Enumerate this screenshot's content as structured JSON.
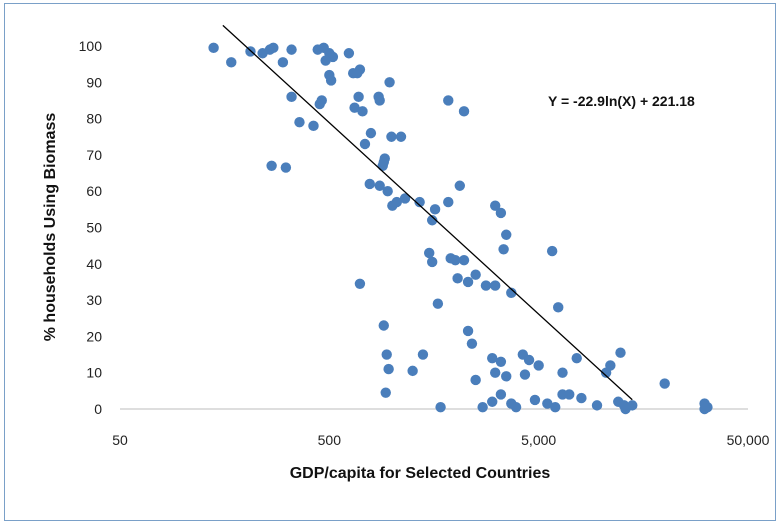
{
  "chart_data": {
    "type": "scatter",
    "title": "",
    "xlabel": "GDP/capita for Selected Countries",
    "ylabel": "% households Using Biomass",
    "x_scale": "log",
    "xlim": [
      50,
      50000
    ],
    "ylim": [
      0,
      100
    ],
    "x_ticks": [
      50,
      500,
      5000,
      50000
    ],
    "x_tick_labels": [
      "50",
      "500",
      "5,000",
      "50,000"
    ],
    "y_ticks": [
      0,
      10,
      20,
      30,
      40,
      50,
      60,
      70,
      80,
      90,
      100
    ],
    "y_tick_labels": [
      "0",
      "10",
      "20",
      "30",
      "40",
      "50",
      "60",
      "70",
      "80",
      "90",
      "100"
    ],
    "grid": "none",
    "legend": "none",
    "point_color": "#4a7ebb",
    "trendline": {
      "label": "Y = -22.9ln(X) + 221.18",
      "slope": -22.9,
      "intercept": 221.18,
      "x_range": [
        155,
        14000
      ],
      "color": "#000000"
    },
    "points": [
      [
        140,
        99.5
      ],
      [
        170,
        95.5
      ],
      [
        210,
        98.5
      ],
      [
        240,
        98
      ],
      [
        270,
        99.5
      ],
      [
        260,
        99
      ],
      [
        330,
        99
      ],
      [
        440,
        99
      ],
      [
        470,
        99.5
      ],
      [
        520,
        97
      ],
      [
        500,
        98
      ],
      [
        480,
        96
      ],
      [
        620,
        98
      ],
      [
        650,
        92.5
      ],
      [
        700,
        93.5
      ],
      [
        680,
        92.5
      ],
      [
        450,
        84
      ],
      [
        460,
        85
      ],
      [
        360,
        79
      ],
      [
        420,
        78
      ],
      [
        330,
        86
      ],
      [
        300,
        95.5
      ],
      [
        500,
        92
      ],
      [
        510,
        90.5
      ],
      [
        690,
        86
      ],
      [
        720,
        82
      ],
      [
        660,
        83
      ],
      [
        870,
        85
      ],
      [
        860,
        86
      ],
      [
        970,
        90
      ],
      [
        1850,
        85
      ],
      [
        2200,
        82
      ],
      [
        265,
        67
      ],
      [
        310,
        66.5
      ],
      [
        740,
        73
      ],
      [
        790,
        76
      ],
      [
        990,
        75
      ],
      [
        1100,
        75
      ],
      [
        780,
        62
      ],
      [
        870,
        61.5
      ],
      [
        900,
        67
      ],
      [
        910,
        68
      ],
      [
        920,
        69
      ],
      [
        950,
        60
      ],
      [
        1000,
        56
      ],
      [
        1050,
        57
      ],
      [
        1150,
        58
      ],
      [
        1350,
        57
      ],
      [
        1600,
        55
      ],
      [
        1850,
        57
      ],
      [
        2100,
        61.5
      ],
      [
        1550,
        52
      ],
      [
        3100,
        56
      ],
      [
        3300,
        54
      ],
      [
        3500,
        48
      ],
      [
        3400,
        44
      ],
      [
        5800,
        43.5
      ],
      [
        1500,
        43
      ],
      [
        1550,
        40.5
      ],
      [
        1900,
        41.5
      ],
      [
        2000,
        41
      ],
      [
        2200,
        41
      ],
      [
        2050,
        36
      ],
      [
        2500,
        37
      ],
      [
        2300,
        35
      ],
      [
        2800,
        34
      ],
      [
        3100,
        34
      ],
      [
        700,
        34.5
      ],
      [
        1650,
        29
      ],
      [
        3700,
        32
      ],
      [
        6200,
        28
      ],
      [
        910,
        23
      ],
      [
        940,
        15
      ],
      [
        960,
        11
      ],
      [
        2300,
        21.5
      ],
      [
        2400,
        18
      ],
      [
        1400,
        15
      ],
      [
        1250,
        10.5
      ],
      [
        3000,
        14
      ],
      [
        3300,
        13
      ],
      [
        4200,
        15
      ],
      [
        4500,
        13.5
      ],
      [
        5000,
        12
      ],
      [
        6500,
        10
      ],
      [
        7600,
        14
      ],
      [
        10500,
        10
      ],
      [
        11000,
        12
      ],
      [
        12300,
        15.5
      ],
      [
        20000,
        7
      ],
      [
        2500,
        8
      ],
      [
        3100,
        10
      ],
      [
        3500,
        9
      ],
      [
        4300,
        9.5
      ],
      [
        3300,
        4
      ],
      [
        3000,
        2
      ],
      [
        3700,
        1.5
      ],
      [
        4800,
        2.5
      ],
      [
        5500,
        1.5
      ],
      [
        6000,
        0.5
      ],
      [
        6500,
        4
      ],
      [
        7000,
        4
      ],
      [
        8000,
        3
      ],
      [
        9500,
        1
      ],
      [
        13000,
        0
      ],
      [
        12000,
        2
      ],
      [
        12800,
        1
      ],
      [
        14000,
        1
      ],
      [
        31000,
        1.5
      ],
      [
        32000,
        0.5
      ],
      [
        930,
        4.5
      ],
      [
        1700,
        0.5
      ],
      [
        2700,
        0.5
      ],
      [
        3900,
        0.5
      ],
      [
        31000,
        0
      ]
    ]
  }
}
